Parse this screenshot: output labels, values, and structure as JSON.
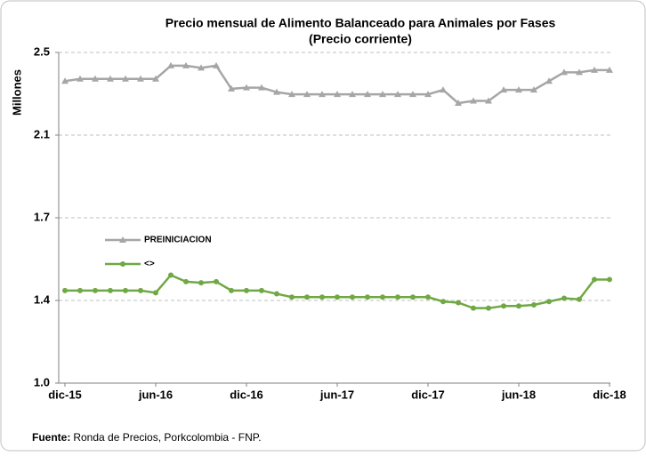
{
  "chart_data": {
    "type": "line",
    "title": [
      "Precio mensual de Alimento Balanceado para Animales por Fases",
      "(Precio corriente)"
    ],
    "y_axis_label": "Millones",
    "categories": [
      "dic-15",
      null,
      null,
      null,
      null,
      null,
      "jun-16",
      null,
      null,
      null,
      null,
      null,
      "dic-16",
      null,
      null,
      null,
      null,
      null,
      "jun-17",
      null,
      null,
      null,
      null,
      null,
      "dic-17",
      null,
      null,
      null,
      null,
      null,
      "jun-18",
      null,
      null,
      null,
      null,
      null,
      "dic-18"
    ],
    "series": [
      {
        "name": "PREINICIACION",
        "color": "#a6a6a6",
        "marker": "triangle",
        "values": [
          2.37,
          2.38,
          2.38,
          2.38,
          2.38,
          2.38,
          2.38,
          2.44,
          2.44,
          2.43,
          2.44,
          2.335,
          2.34,
          2.34,
          2.32,
          2.31,
          2.31,
          2.31,
          2.31,
          2.31,
          2.31,
          2.31,
          2.31,
          2.31,
          2.31,
          2.33,
          2.27,
          2.28,
          2.28,
          2.33,
          2.33,
          2.33,
          2.37,
          2.41,
          2.41,
          2.42,
          2.42
        ]
      },
      {
        "name": "<>",
        "color": "#70a845",
        "marker": "circle",
        "values": [
          1.42,
          1.42,
          1.42,
          1.42,
          1.42,
          1.42,
          1.41,
          1.49,
          1.46,
          1.455,
          1.46,
          1.42,
          1.42,
          1.42,
          1.405,
          1.39,
          1.39,
          1.39,
          1.39,
          1.39,
          1.39,
          1.39,
          1.39,
          1.39,
          1.39,
          1.37,
          1.365,
          1.34,
          1.34,
          1.35,
          1.35,
          1.355,
          1.37,
          1.385,
          1.38,
          1.47,
          1.47
        ]
      }
    ],
    "ylim": [
      1.0,
      2.5
    ],
    "yticks": [
      {
        "value": 1.0,
        "label": "1.0"
      },
      {
        "value": 1.375,
        "label": "1.4"
      },
      {
        "value": 1.75,
        "label": "1.7"
      },
      {
        "value": 2.125,
        "label": "2.1"
      },
      2.5
    ],
    "grid": true,
    "legend": "center-left",
    "source": {
      "label": "Fuente:",
      "text": "Ronda de Precios, Porkcolombia - FNP."
    }
  }
}
